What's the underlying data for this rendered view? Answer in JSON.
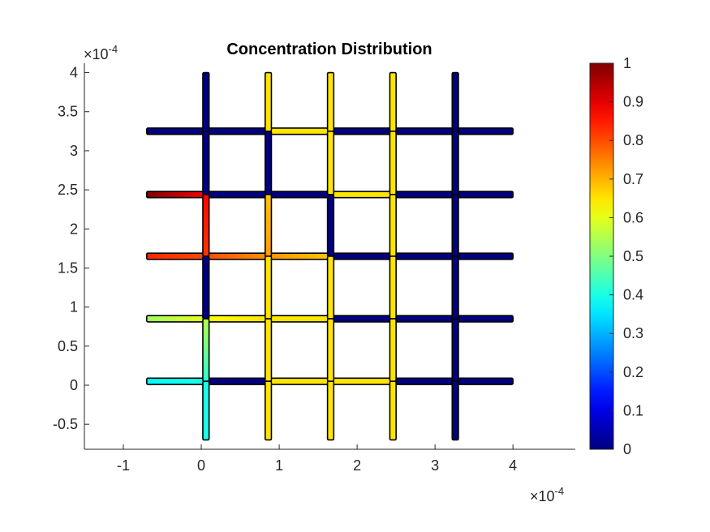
{
  "chart_data": {
    "type": "heatmap",
    "title": "Concentration Distribution",
    "xlabel": "",
    "ylabel": "",
    "xlim": [
      -1.5,
      4.8
    ],
    "ylim": [
      -0.82,
      4.12
    ],
    "x_ticks": [
      {
        "value": -1,
        "label": "-1"
      },
      {
        "value": 0,
        "label": "0"
      },
      {
        "value": 1,
        "label": "1"
      },
      {
        "value": 2,
        "label": "2"
      },
      {
        "value": 3,
        "label": "3"
      },
      {
        "value": 4,
        "label": "4"
      }
    ],
    "y_ticks": [
      {
        "value": -0.5,
        "label": "-0.5"
      },
      {
        "value": 0,
        "label": "0"
      },
      {
        "value": 0.5,
        "label": "0.5"
      },
      {
        "value": 1,
        "label": "1"
      },
      {
        "value": 1.5,
        "label": "1.5"
      },
      {
        "value": 2,
        "label": "2"
      },
      {
        "value": 2.5,
        "label": "2.5"
      },
      {
        "value": 3,
        "label": "3"
      },
      {
        "value": 3.5,
        "label": "3.5"
      },
      {
        "value": 4,
        "label": "4"
      }
    ],
    "x_exponent": {
      "base": "×10",
      "exp": "-4"
    },
    "y_exponent": {
      "base": "×10",
      "exp": "-4"
    },
    "colormap": "jet",
    "colorbar": {
      "clim": [
        0,
        1
      ],
      "ticks": [
        {
          "value": 0,
          "label": "0"
        },
        {
          "value": 0.1,
          "label": "0.1"
        },
        {
          "value": 0.2,
          "label": "0.2"
        },
        {
          "value": 0.3,
          "label": "0.3"
        },
        {
          "value": 0.4,
          "label": "0.4"
        },
        {
          "value": 0.5,
          "label": "0.5"
        },
        {
          "value": 0.6,
          "label": "0.6"
        },
        {
          "value": 0.7,
          "label": "0.7"
        },
        {
          "value": 0.8,
          "label": "0.8"
        },
        {
          "value": 0.9,
          "label": "0.9"
        },
        {
          "value": 1,
          "label": "1"
        }
      ]
    },
    "channel_width": 0.08,
    "channels": [
      {
        "orient": "h",
        "y": 3.25,
        "x0": -0.7,
        "x1": 0.06,
        "c0": 0.0,
        "c1": 0.0
      },
      {
        "orient": "h",
        "y": 3.25,
        "x0": 0.06,
        "x1": 0.86,
        "c0": 0.0,
        "c1": 0.0
      },
      {
        "orient": "h",
        "y": 3.25,
        "x0": 0.86,
        "x1": 1.66,
        "c0": 0.65,
        "c1": 0.65
      },
      {
        "orient": "h",
        "y": 3.25,
        "x0": 1.66,
        "x1": 2.46,
        "c0": 0.0,
        "c1": 0.0
      },
      {
        "orient": "h",
        "y": 3.25,
        "x0": 2.46,
        "x1": 3.26,
        "c0": 0.0,
        "c1": 0.0
      },
      {
        "orient": "h",
        "y": 3.25,
        "x0": 3.26,
        "x1": 4.0,
        "c0": 0.0,
        "c1": 0.0
      },
      {
        "orient": "h",
        "y": 2.44,
        "x0": -0.7,
        "x1": 0.06,
        "c0": 1.0,
        "c1": 0.88
      },
      {
        "orient": "h",
        "y": 2.44,
        "x0": 0.06,
        "x1": 0.86,
        "c0": 0.0,
        "c1": 0.0
      },
      {
        "orient": "h",
        "y": 2.44,
        "x0": 0.86,
        "x1": 1.66,
        "c0": 0.0,
        "c1": 0.0
      },
      {
        "orient": "h",
        "y": 2.44,
        "x0": 1.66,
        "x1": 2.46,
        "c0": 0.65,
        "c1": 0.65
      },
      {
        "orient": "h",
        "y": 2.44,
        "x0": 2.46,
        "x1": 3.26,
        "c0": 0.0,
        "c1": 0.0
      },
      {
        "orient": "h",
        "y": 2.44,
        "x0": 3.26,
        "x1": 4.0,
        "c0": 0.0,
        "c1": 0.0
      },
      {
        "orient": "h",
        "y": 1.65,
        "x0": -0.7,
        "x1": 0.06,
        "c0": 0.84,
        "c1": 0.8
      },
      {
        "orient": "h",
        "y": 1.65,
        "x0": 0.06,
        "x1": 0.86,
        "c0": 0.8,
        "c1": 0.73
      },
      {
        "orient": "h",
        "y": 1.65,
        "x0": 0.86,
        "x1": 1.66,
        "c0": 0.73,
        "c1": 0.68
      },
      {
        "orient": "h",
        "y": 1.65,
        "x0": 1.66,
        "x1": 2.46,
        "c0": 0.0,
        "c1": 0.0
      },
      {
        "orient": "h",
        "y": 1.65,
        "x0": 2.46,
        "x1": 3.26,
        "c0": 0.0,
        "c1": 0.0
      },
      {
        "orient": "h",
        "y": 1.65,
        "x0": 3.26,
        "x1": 4.0,
        "c0": 0.0,
        "c1": 0.0
      },
      {
        "orient": "h",
        "y": 0.85,
        "x0": -0.7,
        "x1": 0.06,
        "c0": 0.53,
        "c1": 0.6
      },
      {
        "orient": "h",
        "y": 0.85,
        "x0": 0.06,
        "x1": 0.86,
        "c0": 0.62,
        "c1": 0.65
      },
      {
        "orient": "h",
        "y": 0.85,
        "x0": 0.86,
        "x1": 1.66,
        "c0": 0.65,
        "c1": 0.65
      },
      {
        "orient": "h",
        "y": 0.85,
        "x0": 1.66,
        "x1": 2.46,
        "c0": 0.0,
        "c1": 0.0
      },
      {
        "orient": "h",
        "y": 0.85,
        "x0": 2.46,
        "x1": 3.26,
        "c0": 0.0,
        "c1": 0.0
      },
      {
        "orient": "h",
        "y": 0.85,
        "x0": 3.26,
        "x1": 4.0,
        "c0": 0.0,
        "c1": 0.0
      },
      {
        "orient": "h",
        "y": 0.05,
        "x0": -0.7,
        "x1": 0.06,
        "c0": 0.37,
        "c1": 0.4
      },
      {
        "orient": "h",
        "y": 0.05,
        "x0": 0.06,
        "x1": 0.86,
        "c0": 0.0,
        "c1": 0.0
      },
      {
        "orient": "h",
        "y": 0.05,
        "x0": 0.86,
        "x1": 1.66,
        "c0": 0.65,
        "c1": 0.65
      },
      {
        "orient": "h",
        "y": 0.05,
        "x0": 1.66,
        "x1": 2.46,
        "c0": 0.65,
        "c1": 0.65
      },
      {
        "orient": "h",
        "y": 0.05,
        "x0": 2.46,
        "x1": 3.26,
        "c0": 0.0,
        "c1": 0.0
      },
      {
        "orient": "h",
        "y": 0.05,
        "x0": 3.26,
        "x1": 4.0,
        "c0": 0.0,
        "c1": 0.0
      },
      {
        "orient": "v",
        "x": 0.06,
        "y0": 3.25,
        "y1": 4.0,
        "c0": 0.0,
        "c1": 0.0
      },
      {
        "orient": "v",
        "x": 0.06,
        "y0": 2.44,
        "y1": 3.25,
        "c0": 0.0,
        "c1": 0.0
      },
      {
        "orient": "v",
        "x": 0.06,
        "y0": 1.65,
        "y1": 2.44,
        "c0": 0.82,
        "c1": 0.87
      },
      {
        "orient": "v",
        "x": 0.06,
        "y0": 0.85,
        "y1": 1.65,
        "c0": 0.0,
        "c1": 0.0
      },
      {
        "orient": "v",
        "x": 0.06,
        "y0": 0.05,
        "y1": 0.85,
        "c0": 0.42,
        "c1": 0.55
      },
      {
        "orient": "v",
        "x": 0.06,
        "y0": -0.7,
        "y1": 0.05,
        "c0": 0.4,
        "c1": 0.4
      },
      {
        "orient": "v",
        "x": 0.86,
        "y0": 3.25,
        "y1": 4.0,
        "c0": 0.65,
        "c1": 0.65
      },
      {
        "orient": "v",
        "x": 0.86,
        "y0": 2.44,
        "y1": 3.25,
        "c0": 0.0,
        "c1": 0.0
      },
      {
        "orient": "v",
        "x": 0.86,
        "y0": 1.65,
        "y1": 2.44,
        "c0": 0.72,
        "c1": 0.68
      },
      {
        "orient": "v",
        "x": 0.86,
        "y0": 0.85,
        "y1": 1.65,
        "c0": 0.65,
        "c1": 0.65
      },
      {
        "orient": "v",
        "x": 0.86,
        "y0": 0.05,
        "y1": 0.85,
        "c0": 0.65,
        "c1": 0.65
      },
      {
        "orient": "v",
        "x": 0.86,
        "y0": -0.7,
        "y1": 0.05,
        "c0": 0.65,
        "c1": 0.65
      },
      {
        "orient": "v",
        "x": 1.66,
        "y0": 3.25,
        "y1": 4.0,
        "c0": 0.65,
        "c1": 0.65
      },
      {
        "orient": "v",
        "x": 1.66,
        "y0": 2.44,
        "y1": 3.25,
        "c0": 0.65,
        "c1": 0.65
      },
      {
        "orient": "v",
        "x": 1.66,
        "y0": 1.65,
        "y1": 2.44,
        "c0": 0.0,
        "c1": 0.0
      },
      {
        "orient": "v",
        "x": 1.66,
        "y0": 0.85,
        "y1": 1.65,
        "c0": 0.65,
        "c1": 0.65
      },
      {
        "orient": "v",
        "x": 1.66,
        "y0": 0.05,
        "y1": 0.85,
        "c0": 0.65,
        "c1": 0.65
      },
      {
        "orient": "v",
        "x": 1.66,
        "y0": -0.7,
        "y1": 0.05,
        "c0": 0.65,
        "c1": 0.65
      },
      {
        "orient": "v",
        "x": 2.46,
        "y0": 3.25,
        "y1": 4.0,
        "c0": 0.65,
        "c1": 0.65
      },
      {
        "orient": "v",
        "x": 2.46,
        "y0": 2.44,
        "y1": 3.25,
        "c0": 0.65,
        "c1": 0.65
      },
      {
        "orient": "v",
        "x": 2.46,
        "y0": 1.65,
        "y1": 2.44,
        "c0": 0.65,
        "c1": 0.65
      },
      {
        "orient": "v",
        "x": 2.46,
        "y0": 0.85,
        "y1": 1.65,
        "c0": 0.65,
        "c1": 0.65
      },
      {
        "orient": "v",
        "x": 2.46,
        "y0": 0.05,
        "y1": 0.85,
        "c0": 0.65,
        "c1": 0.65
      },
      {
        "orient": "v",
        "x": 2.46,
        "y0": -0.7,
        "y1": 0.05,
        "c0": 0.65,
        "c1": 0.65
      },
      {
        "orient": "v",
        "x": 3.26,
        "y0": 3.25,
        "y1": 4.0,
        "c0": 0.0,
        "c1": 0.0
      },
      {
        "orient": "v",
        "x": 3.26,
        "y0": 2.44,
        "y1": 3.25,
        "c0": 0.0,
        "c1": 0.0
      },
      {
        "orient": "v",
        "x": 3.26,
        "y0": 1.65,
        "y1": 2.44,
        "c0": 0.0,
        "c1": 0.0
      },
      {
        "orient": "v",
        "x": 3.26,
        "y0": 0.85,
        "y1": 1.65,
        "c0": 0.0,
        "c1": 0.0
      },
      {
        "orient": "v",
        "x": 3.26,
        "y0": 0.05,
        "y1": 0.85,
        "c0": 0.0,
        "c1": 0.0
      },
      {
        "orient": "v",
        "x": 3.26,
        "y0": -0.7,
        "y1": 0.05,
        "c0": 0.0,
        "c1": 0.0
      }
    ]
  }
}
